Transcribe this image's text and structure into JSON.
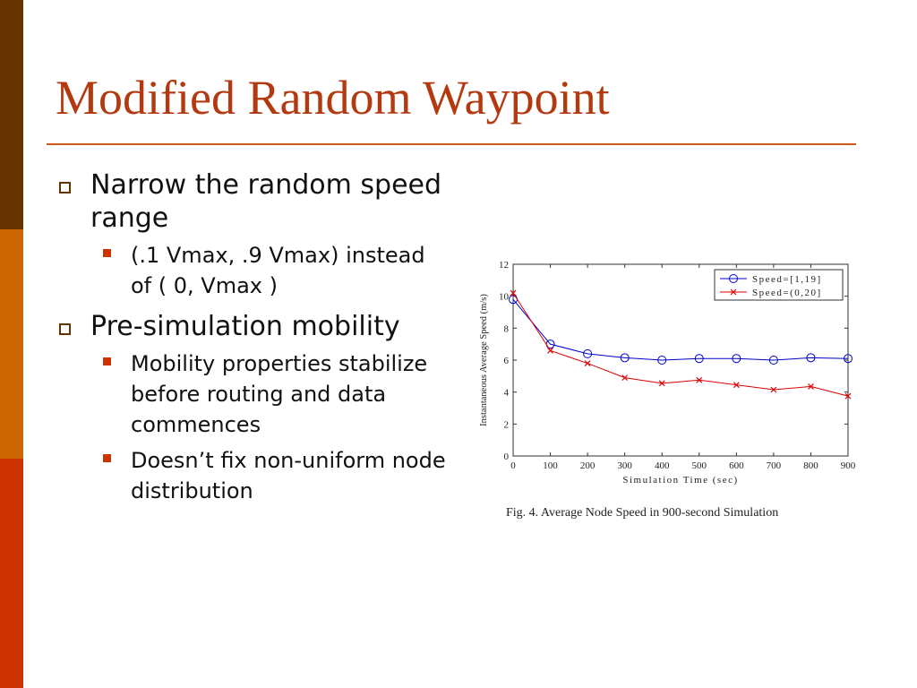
{
  "slide": {
    "title": "Modified Random Waypoint",
    "bullets": [
      {
        "text": "Narrow the random speed range",
        "sub": [
          "(.1 Vmax, .9 Vmax) instead of ( 0, Vmax )"
        ]
      },
      {
        "text": "Pre-simulation mobility",
        "sub": [
          "Mobility properties stabilize before routing and data commences",
          "Doesn’t fix non-uniform node distribution"
        ]
      }
    ],
    "figure_caption": "Fig. 4.    Average Node Speed in 900-second Simulation"
  },
  "colors": {
    "bar_top": "#663300",
    "bar_mid": "#cc6600",
    "bar_bottom": "#cc3300",
    "title": "#b33a10",
    "series_blue": "#0000cc",
    "series_red": "#dd0000"
  },
  "chart_data": {
    "type": "line",
    "xlabel": "Simulation Time (sec)",
    "ylabel": "Instantaneous Average Speed (m/s)",
    "xlim": [
      0,
      900
    ],
    "ylim": [
      0,
      12
    ],
    "xticks": [
      0,
      100,
      200,
      300,
      400,
      500,
      600,
      700,
      800,
      900
    ],
    "yticks": [
      0,
      2,
      4,
      6,
      8,
      10,
      12
    ],
    "grid": false,
    "legend_position": "top-right",
    "series": [
      {
        "name": "Speed=[1,19]",
        "marker": "circle",
        "color": "#0000cc",
        "x": [
          0,
          100,
          200,
          300,
          400,
          500,
          600,
          700,
          800,
          900
        ],
        "y": [
          9.8,
          7.0,
          6.4,
          6.15,
          6.0,
          6.1,
          6.1,
          6.0,
          6.15,
          6.1
        ]
      },
      {
        "name": "Speed=(0,20]",
        "marker": "x",
        "color": "#dd0000",
        "x": [
          0,
          100,
          200,
          300,
          400,
          500,
          600,
          700,
          800,
          900
        ],
        "y": [
          10.2,
          6.6,
          5.8,
          4.9,
          4.55,
          4.75,
          4.45,
          4.15,
          4.35,
          3.75
        ]
      }
    ]
  }
}
